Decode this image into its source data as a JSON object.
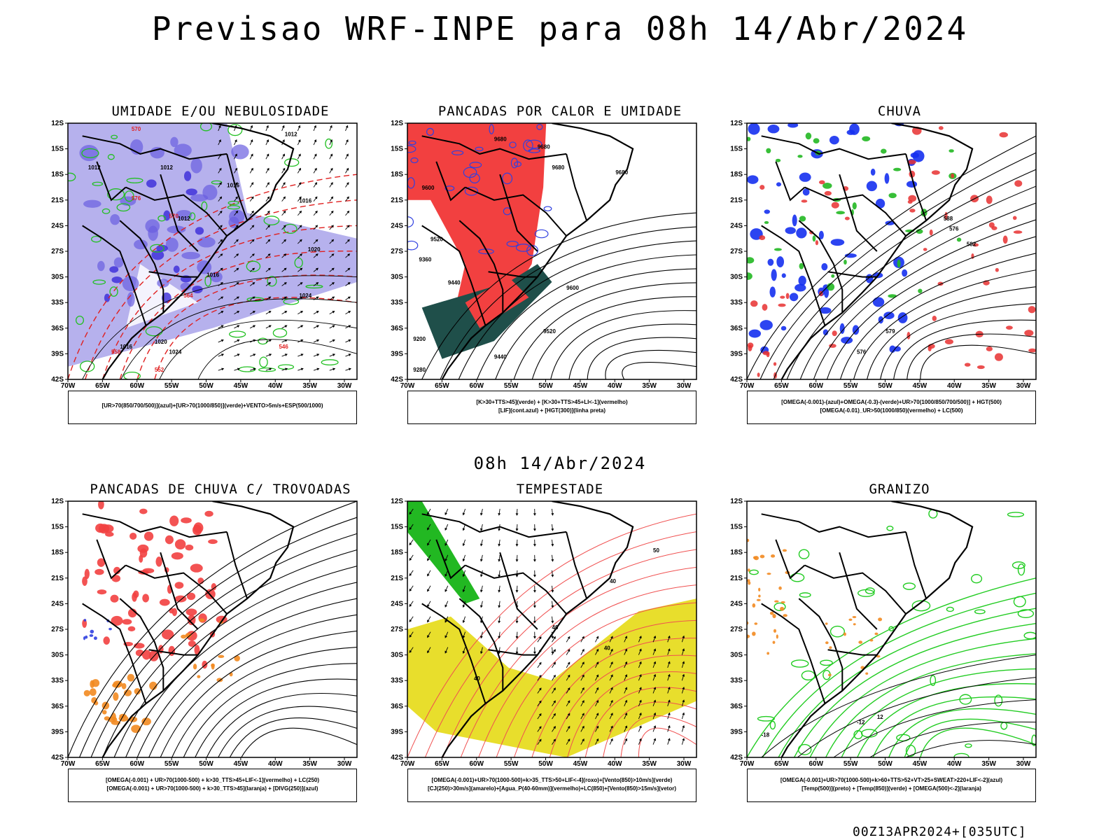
{
  "header": {
    "title": "Previsao WRF-INPE  para 08h 14/Abr/2024",
    "mid_title": "08h 14/Abr/2024",
    "run_id": "00Z13APR2024+[035UTC]"
  },
  "axes": {
    "lon_ticks": [
      "70W",
      "65W",
      "60W",
      "55W",
      "50W",
      "45W",
      "40W",
      "35W",
      "30W"
    ],
    "lat_ticks": [
      "12S",
      "15S",
      "18S",
      "21S",
      "24S",
      "27S",
      "30S",
      "33S",
      "36S",
      "39S",
      "42S"
    ]
  },
  "panels": [
    {
      "id": "umidade",
      "title": "UMIDADE E/OU NEBULOSIDADE",
      "legend": [
        "[UR>70(850/700/500)](azul)+[UR>70(1000/850)](verde)+VENTO>5m/s+ESP(500/1000)"
      ],
      "labels": [
        "1012",
        "1012",
        "1012",
        "1016",
        "1016",
        "1012",
        "1016",
        "1020",
        "1024",
        "1024",
        "1016",
        "1020",
        "570",
        "576",
        "570",
        "564",
        "558",
        "552",
        "546"
      ]
    },
    {
      "id": "pancadas-calor",
      "title": "PANCADAS POR CALOR E UMIDADE",
      "legend": [
        "[K>30+TTS>45](verde) + [K>30+TTS>45+LI<-1](vermelho)",
        "[LIF](cont.azul) + [HGT(300)](linha preta)"
      ],
      "labels": [
        "9680",
        "9680",
        "9680",
        "9680",
        "9600",
        "9520",
        "9440",
        "9360",
        "9600",
        "9520",
        "9440",
        "9280",
        "9200"
      ]
    },
    {
      "id": "chuva",
      "title": "CHUVA",
      "legend": [
        "[OMEGA(-0.001)-(azul)+OMEGA(-0.3)-(verde)+UR>70(1000/850/700/500)] + HGT(500)",
        "[OMEGA(-0.01)_UR>50(1000/850)(vermelho) + LC(500)"
      ],
      "labels": [
        "588",
        "582",
        "576",
        "579",
        "576"
      ]
    },
    {
      "id": "trovoadas",
      "title": "PANCADAS DE CHUVA C/ TROVOADAS",
      "legend": [
        "[OMEGA(-0.001) + UR>70(1000-500) + k>30_TTS>45+LIF<-1](vermelho) + LC(250)",
        "[OMEGA(-0.001) + UR>70(1000-500) + k>30_TTS>45](laranja) + [DIVG(250)](azul)"
      ],
      "labels": []
    },
    {
      "id": "tempestade",
      "title": "TEMPESTADE",
      "legend": [
        "[OMEGA(-0.001)+UR>70(1000-500)+k>35_TTS>50+LIF<-4](roxo)+[Vento(850)>10m/s](verde)",
        "[CJ(250)>30m/s](amarelo)+[Agua_P(40-60mm)](vermelho)+LC(850)+[Vento(850)>15m/s](vetor)"
      ],
      "labels": [
        "40",
        "40",
        "50",
        "40",
        "40"
      ]
    },
    {
      "id": "granizo",
      "title": "GRANIZO",
      "legend": [
        "[OMEGA(-0.001)+UR>70(1000-500)+k>60+TTS>52+VT>25+SWEAT>220+LIF<-2](azul)",
        "[Temp(500)](preto) + [Temp(850)](verde) + [OMEGA(500)<-2](laranja)"
      ],
      "labels": [
        "12",
        "-12",
        "-18"
      ]
    }
  ]
}
